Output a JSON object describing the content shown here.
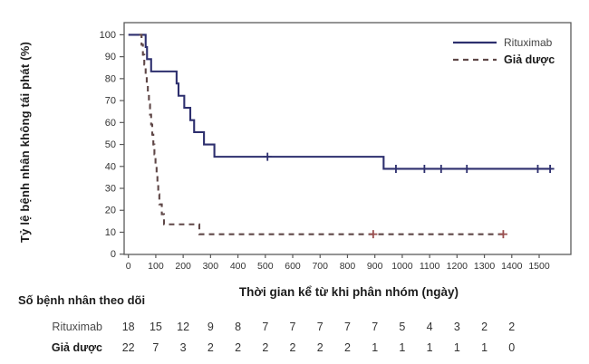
{
  "chart_data": {
    "type": "line",
    "subtype": "kaplan-meier-step",
    "title": "",
    "xlabel": "Thời gian kể từ khi phân nhóm (ngày)",
    "ylabel": "Tỷ lệ bệnh nhân không tái phát (%)",
    "xlim": [
      0,
      1560
    ],
    "ylim": [
      0,
      100
    ],
    "xticks": [
      0,
      100,
      200,
      300,
      400,
      500,
      600,
      700,
      800,
      900,
      1000,
      1100,
      1200,
      1300,
      1400,
      1500
    ],
    "yticks": [
      0,
      10,
      20,
      30,
      40,
      50,
      60,
      70,
      80,
      90,
      100
    ],
    "grid": false,
    "legend_position": "top-right",
    "colors": {
      "rituximab": "#2d2f6e",
      "placebo_line": "#5f4747",
      "placebo_censor": "#9a4f4f",
      "axis": "#5a5a5a",
      "tick_text": "#333333"
    },
    "series": [
      {
        "name": "Rituximab",
        "style": "solid",
        "color": "#2d2f6e",
        "steps": [
          [
            0,
            100
          ],
          [
            63,
            94.4
          ],
          [
            68,
            88.9
          ],
          [
            83,
            83.3
          ],
          [
            176,
            77.8
          ],
          [
            183,
            72.2
          ],
          [
            204,
            66.7
          ],
          [
            226,
            61.1
          ],
          [
            240,
            55.6
          ],
          [
            276,
            50.0
          ],
          [
            314,
            44.4
          ],
          [
            932,
            38.9
          ],
          [
            1545,
            38.9
          ]
        ],
        "censors": [
          [
            508,
            44.4
          ],
          [
            977,
            38.9
          ],
          [
            1081,
            38.9
          ],
          [
            1142,
            38.9
          ],
          [
            1236,
            38.9
          ],
          [
            1495,
            38.9
          ],
          [
            1540,
            38.9
          ]
        ]
      },
      {
        "name": "Giả dược",
        "style": "dashed",
        "color": "#5f4747",
        "censor_color": "#9a4f4f",
        "steps": [
          [
            40,
            100
          ],
          [
            48,
            95.5
          ],
          [
            53,
            90.9
          ],
          [
            58,
            86.4
          ],
          [
            63,
            81.8
          ],
          [
            67,
            77.3
          ],
          [
            71,
            72.7
          ],
          [
            75,
            68.2
          ],
          [
            79,
            63.6
          ],
          [
            83,
            59.1
          ],
          [
            87,
            54.5
          ],
          [
            91,
            50.0
          ],
          [
            95,
            45.5
          ],
          [
            99,
            40.9
          ],
          [
            103,
            36.4
          ],
          [
            106,
            31.8
          ],
          [
            109,
            27.3
          ],
          [
            113,
            22.7
          ],
          [
            122,
            18.2
          ],
          [
            130,
            13.6
          ],
          [
            259,
            9.1
          ],
          [
            1369,
            9.1
          ]
        ],
        "censors": [
          [
            894,
            9.1
          ],
          [
            1369,
            9.1
          ]
        ]
      }
    ],
    "at_risk": {
      "heading": "Số bệnh nhân theo dõi",
      "timepoints": [
        0,
        100,
        200,
        300,
        400,
        500,
        600,
        700,
        800,
        900,
        1000,
        1100,
        1200,
        1300,
        1400
      ],
      "rows": [
        {
          "label": "Rituximab",
          "bold": false,
          "values": [
            18,
            15,
            12,
            9,
            8,
            7,
            7,
            7,
            7,
            7,
            5,
            4,
            3,
            2,
            2
          ]
        },
        {
          "label": "Giả dược",
          "bold": true,
          "values": [
            22,
            7,
            3,
            2,
            2,
            2,
            2,
            2,
            2,
            1,
            1,
            1,
            1,
            1,
            0
          ]
        }
      ]
    }
  }
}
